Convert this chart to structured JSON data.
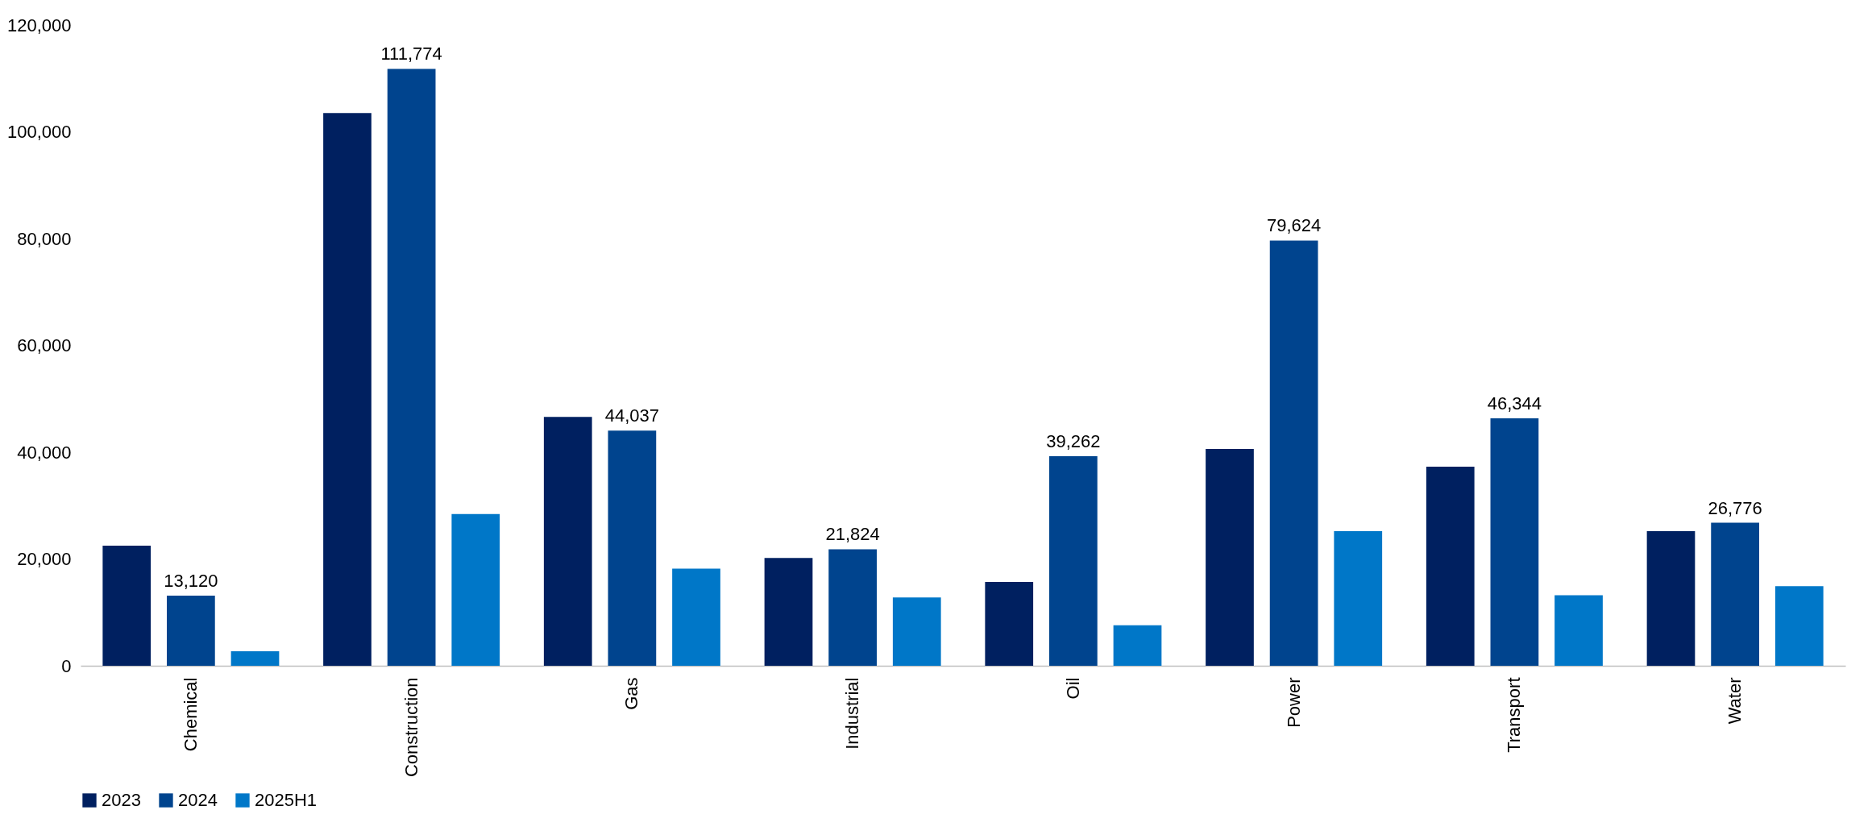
{
  "chart_data": {
    "type": "bar",
    "categories": [
      "Chemical",
      "Construction",
      "Gas",
      "Industrial",
      "Oil",
      "Power",
      "Transport",
      "Water"
    ],
    "series": [
      {
        "name": "2023",
        "color": "#002060",
        "values": [
          22500,
          103500,
          46600,
          20200,
          15700,
          40600,
          37300,
          25200
        ]
      },
      {
        "name": "2024",
        "color": "#00448e",
        "values": [
          13120,
          111774,
          44037,
          21824,
          39262,
          79624,
          46344,
          26776
        ],
        "value_labels": [
          "13,120",
          "111,774",
          "44,037",
          "21,824",
          "39,262",
          "79,624",
          "46,344",
          "26,776"
        ]
      },
      {
        "name": "2025H1",
        "color": "#0077c8",
        "values": [
          2700,
          28400,
          18200,
          12800,
          7600,
          25200,
          13200,
          14900
        ]
      }
    ],
    "ylim": [
      0,
      120000
    ],
    "yticks": [
      {
        "value": 0,
        "label": "0"
      },
      {
        "value": 20000,
        "label": "20,000"
      },
      {
        "value": 40000,
        "label": "40,000"
      },
      {
        "value": 60000,
        "label": "60,000"
      },
      {
        "value": 80000,
        "label": "80,000"
      },
      {
        "value": 100000,
        "label": "100,000"
      },
      {
        "value": 120000,
        "label": "120,000"
      }
    ],
    "grid": false,
    "legend": "bottom"
  }
}
